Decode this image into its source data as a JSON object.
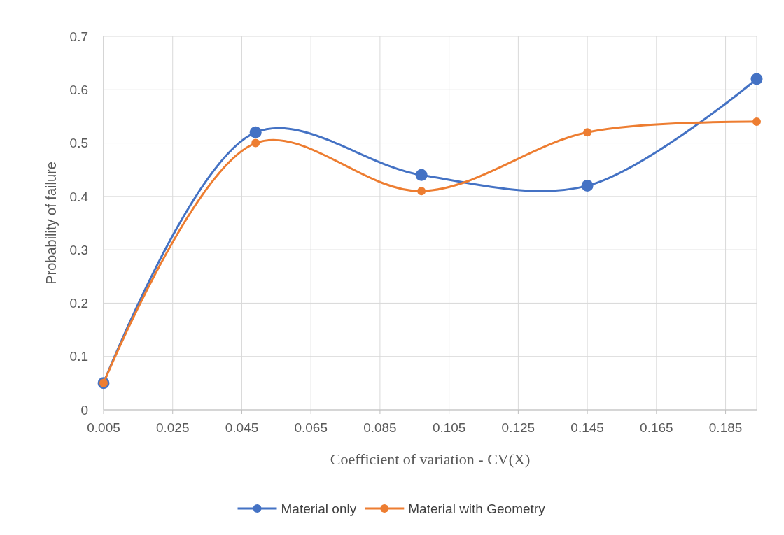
{
  "chart_data": {
    "type": "line",
    "xlabel": "Coefficient of variation - CV(X)",
    "ylabel": "Probability of failure",
    "x": [
      0.005,
      0.049,
      0.097,
      0.145,
      0.194
    ],
    "series": [
      {
        "name": "Material only",
        "color": "#4472c4",
        "values": [
          0.05,
          0.52,
          0.44,
          0.42,
          0.62
        ]
      },
      {
        "name": "Material with Geometry",
        "color": "#ed7d31",
        "values": [
          0.05,
          0.5,
          0.41,
          0.52,
          0.54
        ]
      }
    ],
    "xlim": [
      0.005,
      0.194
    ],
    "xticks": [
      0.005,
      0.025,
      0.045,
      0.065,
      0.085,
      0.105,
      0.125,
      0.145,
      0.165,
      0.185
    ],
    "ylim": [
      0,
      0.7
    ],
    "yticks": [
      0,
      0.1,
      0.2,
      0.3,
      0.4,
      0.5,
      0.6,
      0.7
    ],
    "grid": true,
    "legend": "bottom",
    "marker": "circle",
    "line_style": "solid"
  }
}
